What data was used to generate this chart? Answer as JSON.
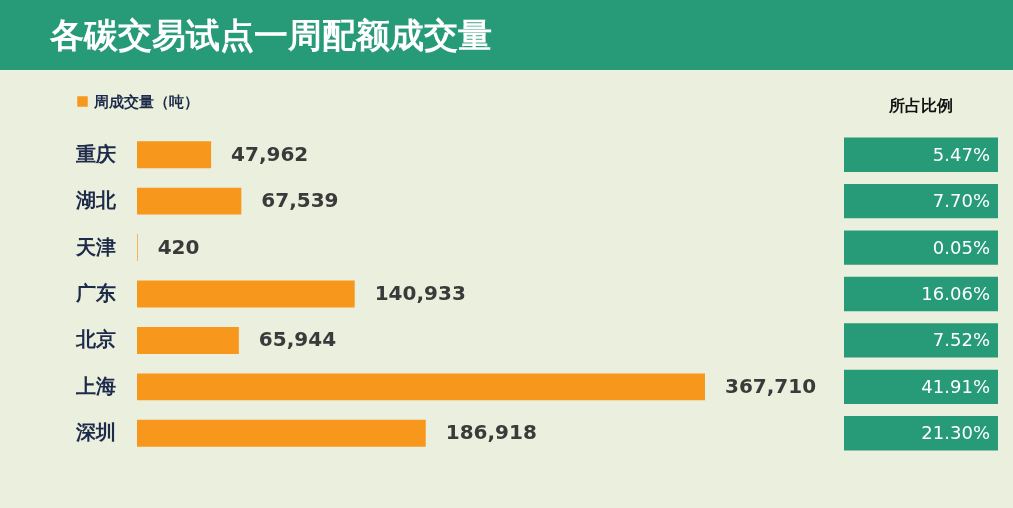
{
  "chart_data": {
    "type": "bar",
    "title": "各碳交易试点一周配额成交量",
    "orientation": "horizontal",
    "categories": [
      "重庆",
      "湖北",
      "天津",
      "广东",
      "北京",
      "上海",
      "深圳"
    ],
    "series": [
      {
        "name": "周成交量（吨）",
        "color": "#f7981d",
        "values": [
          47962,
          67539,
          420,
          140933,
          65944,
          367710,
          186918
        ],
        "value_labels": [
          "47,962",
          "67,539",
          "420",
          "140,933",
          "65,944",
          "367,710",
          "186,918"
        ]
      }
    ],
    "legend": "top left",
    "annotations": [
      "所占比例",
      "5.47%",
      "7.70%",
      "0.05%",
      "16.06%",
      "7.52%",
      "41.91%",
      "21.30%"
    ]
  }
}
